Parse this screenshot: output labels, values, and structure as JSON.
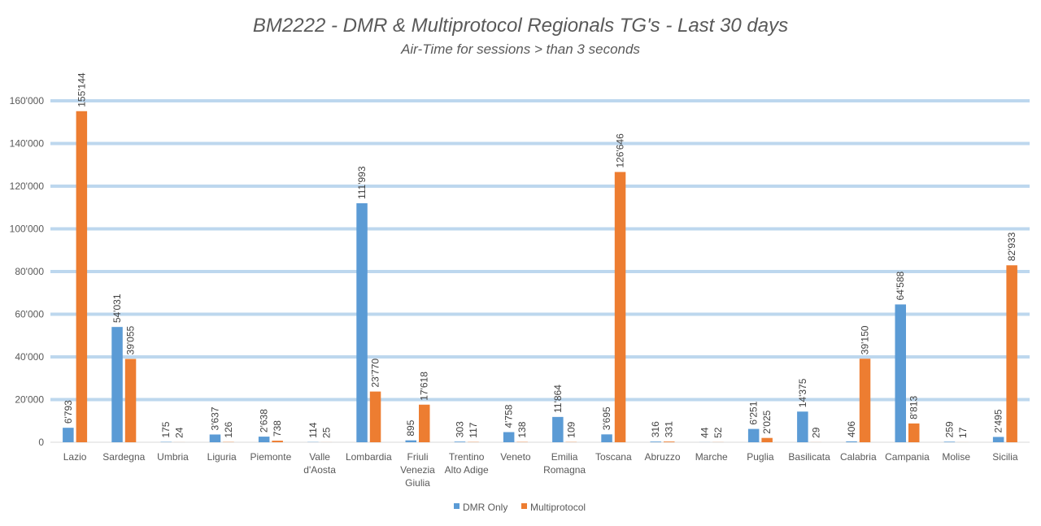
{
  "chart_data": {
    "type": "bar",
    "title": "BM2222 - DMR & Multiprotocol Regionals TG's - Last 30 days",
    "subtitle": "Air-Time for sessions > than 3 seconds",
    "categories": [
      [
        "Lazio"
      ],
      [
        "Sardegna"
      ],
      [
        "Umbria"
      ],
      [
        "Liguria"
      ],
      [
        "Piemonte"
      ],
      [
        "Valle",
        "d'Aosta"
      ],
      [
        "Lombardia"
      ],
      [
        "Friuli",
        "Venezia",
        "Giulia"
      ],
      [
        "Trentino",
        "Alto Adige"
      ],
      [
        "Veneto"
      ],
      [
        "Emilia",
        "Romagna"
      ],
      [
        "Toscana"
      ],
      [
        "Abruzzo"
      ],
      [
        "Marche"
      ],
      [
        "Puglia"
      ],
      [
        "Basilicata"
      ],
      [
        "Calabria"
      ],
      [
        "Campania"
      ],
      [
        "Molise"
      ],
      [
        "Sicilia"
      ]
    ],
    "series": [
      {
        "name": "DMR Only",
        "color": "#5b9bd5",
        "values": [
          6793,
          54031,
          175,
          3637,
          2638,
          114,
          111993,
          895,
          303,
          4758,
          11864,
          3695,
          316,
          44,
          6251,
          14375,
          406,
          64588,
          259,
          2495
        ],
        "labels": [
          "6'793",
          "54'031",
          "175",
          "3'637",
          "2'638",
          "114",
          "111'993",
          "895",
          "303",
          "4'758",
          "11'864",
          "3'695",
          "316",
          "44",
          "6'251",
          "14'375",
          "406",
          "64'588",
          "259",
          "2'495"
        ]
      },
      {
        "name": "Multiprotocol",
        "color": "#ed7d31",
        "values": [
          155144,
          39055,
          24,
          126,
          738,
          25,
          23770,
          17618,
          117,
          138,
          109,
          126646,
          331,
          52,
          2025,
          29,
          39150,
          8813,
          17,
          82933
        ],
        "labels": [
          "155'144",
          "39'055",
          "24",
          "126",
          "738",
          "25",
          "23'770",
          "17'618",
          "117",
          "138",
          "109",
          "126'646",
          "331",
          "52",
          "2'025",
          "29",
          "39'150",
          "8'813",
          "17",
          "82'933"
        ]
      }
    ],
    "ylim": [
      0,
      160000
    ],
    "yticks": [
      0,
      20000,
      40000,
      60000,
      80000,
      100000,
      120000,
      140000,
      160000
    ],
    "ytick_labels": [
      "0",
      "20'000",
      "40'000",
      "60'000",
      "80'000",
      "100'000",
      "120'000",
      "140'000",
      "160'000"
    ],
    "grid": true,
    "gridline_color": "#bdd7ee",
    "legend_position": "bottom"
  }
}
